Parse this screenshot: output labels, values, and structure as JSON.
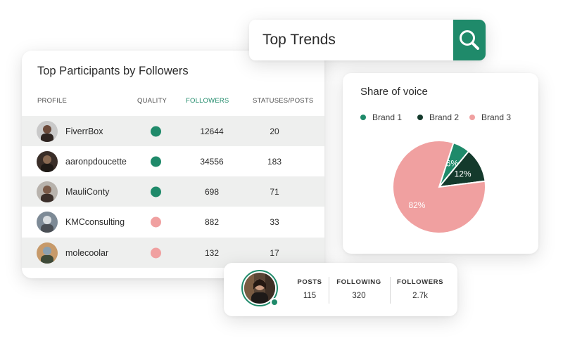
{
  "search": {
    "value": "Top Trends"
  },
  "participants": {
    "title": "Top Participants by Followers",
    "columns": {
      "profile": "PROFILE",
      "quality": "QUALITY",
      "followers": "FOLLOWERS",
      "statuses": "STATUSES/POSTS"
    },
    "rows": [
      {
        "name": "FiverrBox",
        "quality": "good",
        "followers": "12644",
        "statuses": "20"
      },
      {
        "name": "aaronpdoucette",
        "quality": "good",
        "followers": "34556",
        "statuses": "183"
      },
      {
        "name": "MauliConty",
        "quality": "good",
        "followers": "698",
        "statuses": "71"
      },
      {
        "name": "KMCconsulting",
        "quality": "low",
        "followers": "882",
        "statuses": "33"
      },
      {
        "name": "molecoolar",
        "quality": "low",
        "followers": "132",
        "statuses": "17"
      }
    ]
  },
  "share_of_voice": {
    "title": "Share of voice",
    "legend": [
      {
        "label": "Brand 1",
        "color": "#1f8a6a"
      },
      {
        "label": "Brand 2",
        "color": "#143a2c"
      },
      {
        "label": "Brand 3",
        "color": "#f0a0a0"
      }
    ]
  },
  "chart_data": {
    "type": "pie",
    "title": "Share of voice",
    "categories": [
      "Brand 1",
      "Brand 2",
      "Brand 3"
    ],
    "values": [
      6,
      12,
      82
    ],
    "labels": [
      "6%",
      "12%",
      "82%"
    ],
    "colors": [
      "#1f8a6a",
      "#143a2c",
      "#f0a0a0"
    ]
  },
  "profile_stats": {
    "posts": {
      "label": "POSTS",
      "value": "115"
    },
    "following": {
      "label": "FOLLOWING",
      "value": "320"
    },
    "followers": {
      "label": "FOLLOWERS",
      "value": "2.7k"
    }
  },
  "colors": {
    "accent": "#1f8a6a",
    "good": "#1f8a6a",
    "low": "#f0a0a0",
    "row_shade": "#eeefee"
  }
}
